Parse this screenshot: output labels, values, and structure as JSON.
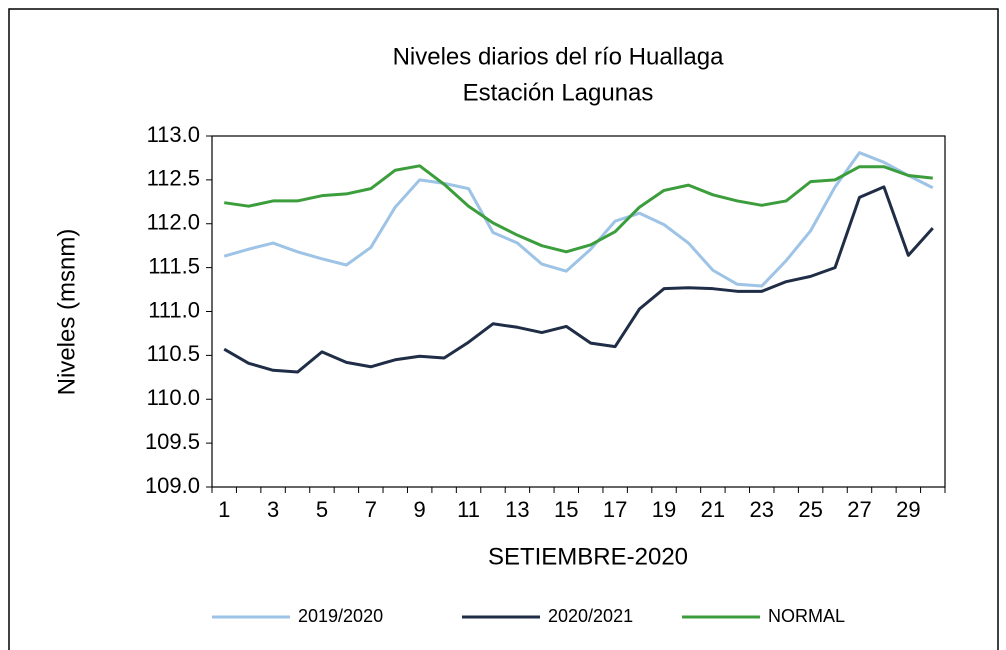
{
  "chart_data": {
    "type": "line",
    "title": "Niveles  diarios del río Huallaga",
    "subtitle": "Estación Lagunas",
    "y_label": "Niveles  (msnm)",
    "x_label": "SETIEMBRE-2020",
    "categories": [
      "1",
      null,
      "3",
      null,
      "5",
      null,
      "7",
      null,
      "9",
      null,
      "11",
      null,
      "13",
      null,
      "15",
      null,
      "17",
      null,
      "19",
      null,
      "21",
      null,
      "23",
      null,
      "25",
      null,
      "27",
      null,
      "29",
      null
    ],
    "ylim": [
      109,
      113
    ],
    "yticks": [
      {
        "value": 109,
        "label": "109.0"
      },
      {
        "value": 109.5,
        "label": "109.5"
      },
      {
        "value": 110,
        "label": "110.0"
      },
      {
        "value": 110.5,
        "label": "110.5"
      },
      {
        "value": 111,
        "label": "111.0"
      },
      {
        "value": 111.5,
        "label": "111.5"
      },
      {
        "value": 112,
        "label": "112.0"
      },
      {
        "value": 112.5,
        "label": "112.5"
      },
      {
        "value": 113,
        "label": "113.0"
      }
    ],
    "legend": "bottom",
    "series": [
      {
        "name": "2019/2020",
        "color": "#9dc3e6",
        "values": [
          111.63,
          111.71,
          111.78,
          111.68,
          111.6,
          111.53,
          111.73,
          112.19,
          112.5,
          112.46,
          112.4,
          111.9,
          111.78,
          111.54,
          111.46,
          111.71,
          112.03,
          112.12,
          111.99,
          111.78,
          111.47,
          111.31,
          111.29,
          111.58,
          111.92,
          112.42,
          112.81,
          112.7,
          112.55,
          112.41
        ]
      },
      {
        "name": "2020/2021",
        "color": "#1f2d46",
        "values": [
          110.57,
          110.41,
          110.33,
          110.31,
          110.54,
          110.42,
          110.37,
          110.45,
          110.49,
          110.47,
          110.65,
          110.86,
          110.82,
          110.76,
          110.83,
          110.64,
          110.6,
          111.03,
          111.26,
          111.27,
          111.26,
          111.23,
          111.23,
          111.34,
          111.4,
          111.5,
          112.3,
          112.42,
          111.64,
          111.95
        ]
      },
      {
        "name": "NORMAL",
        "color": "#3c9d3c",
        "values": [
          112.24,
          112.2,
          112.26,
          112.26,
          112.32,
          112.34,
          112.4,
          112.61,
          112.66,
          112.45,
          112.2,
          112.01,
          111.87,
          111.75,
          111.68,
          111.76,
          111.91,
          112.19,
          112.38,
          112.44,
          112.33,
          112.26,
          112.21,
          112.26,
          112.48,
          112.5,
          112.65,
          112.65,
          112.55,
          112.52
        ]
      }
    ]
  }
}
